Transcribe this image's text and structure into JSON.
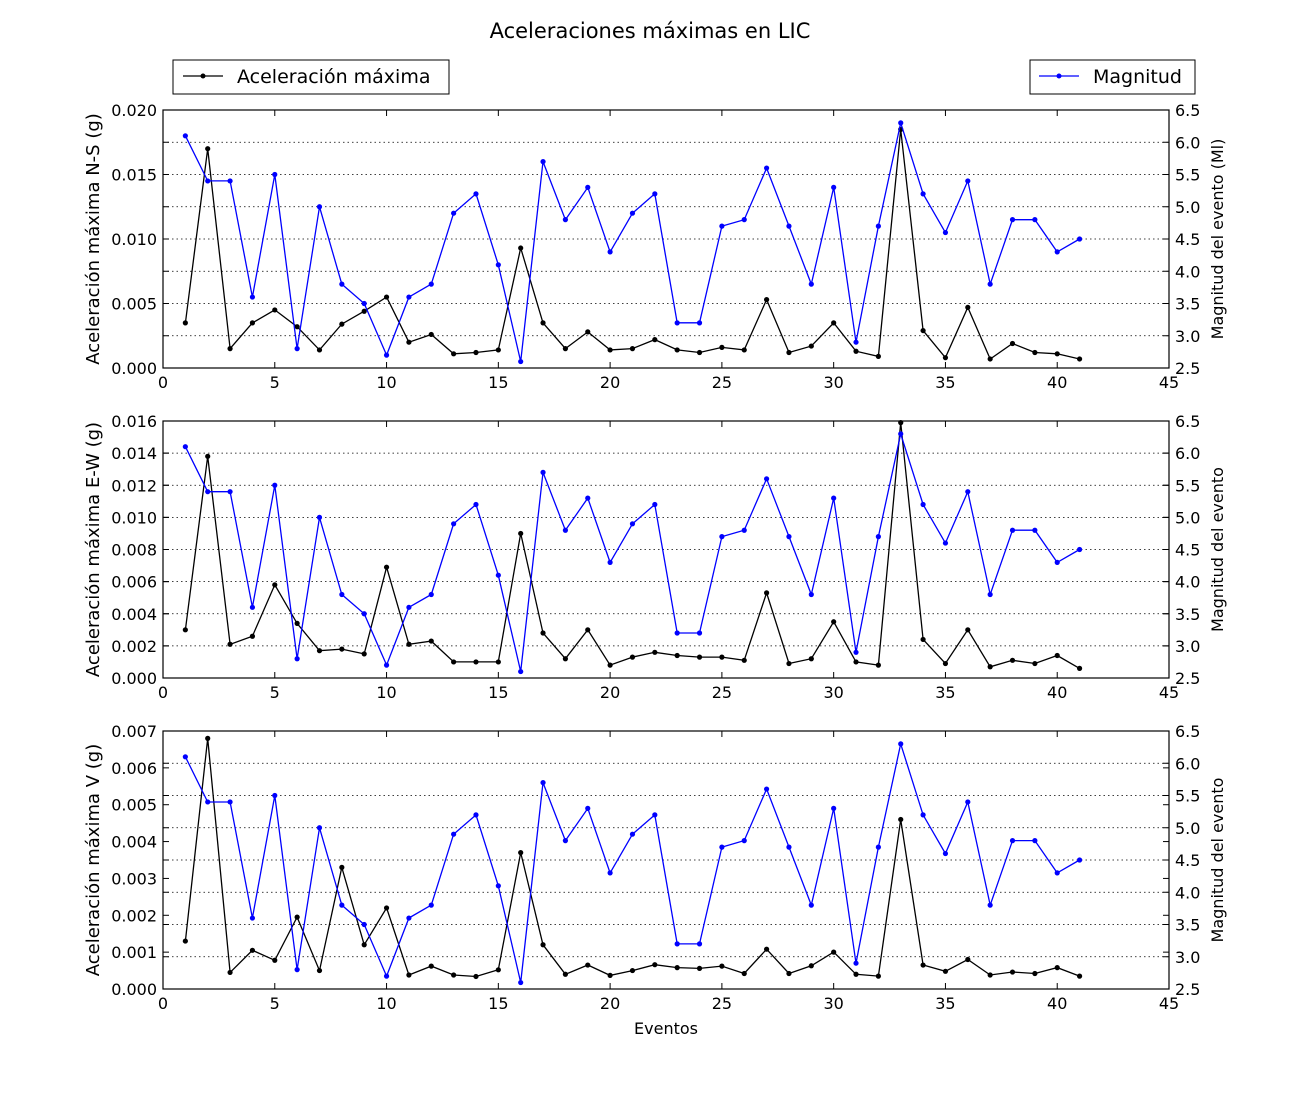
{
  "figure": {
    "title": "Aceleraciones máximas en LIC",
    "xlabel": "Eventos"
  },
  "legend": {
    "left": "Aceleración máxima",
    "right": "Magnitud"
  },
  "colors": {
    "acceleration": "#000000",
    "magnitude": "#0000ff",
    "grid": "#000000"
  },
  "chart_data": [
    {
      "type": "line",
      "xlim": [
        0,
        45
      ],
      "xticks": [
        0,
        5,
        10,
        15,
        20,
        25,
        30,
        35,
        40,
        45
      ],
      "ylabel": "Aceleración máxima N-S (g)",
      "ylim": [
        0,
        0.02
      ],
      "yticks": [
        "0.000",
        "0.005",
        "0.010",
        "0.015",
        "0.020"
      ],
      "y2label": "Magnitud del evento (Ml)",
      "y2lim": [
        2.5,
        6.5
      ],
      "y2ticks": [
        "2.5",
        "3.0",
        "3.5",
        "4.0",
        "4.5",
        "5.0",
        "5.5",
        "6.0",
        "6.5"
      ],
      "grid": "horizontal dotted",
      "legend": "top",
      "x": [
        1,
        2,
        3,
        4,
        5,
        6,
        7,
        8,
        9,
        10,
        11,
        12,
        13,
        14,
        15,
        16,
        17,
        18,
        19,
        20,
        21,
        22,
        23,
        24,
        25,
        26,
        27,
        28,
        29,
        30,
        31,
        32,
        33,
        34,
        35,
        36,
        37,
        38,
        39,
        40,
        41
      ],
      "series": [
        {
          "name": "Aceleración máxima",
          "axis": "left",
          "values": [
            0.0035,
            0.017,
            0.0015,
            0.0035,
            0.0045,
            0.0032,
            0.0014,
            0.0034,
            0.0044,
            0.0055,
            0.002,
            0.0026,
            0.0011,
            0.0012,
            0.0014,
            0.0093,
            0.0035,
            0.0015,
            0.0028,
            0.0014,
            0.0015,
            0.0022,
            0.0014,
            0.0012,
            0.0016,
            0.0014,
            0.0053,
            0.0012,
            0.0017,
            0.0035,
            0.0013,
            0.0009,
            0.0185,
            0.0029,
            0.0008,
            0.0047,
            0.0007,
            0.0019,
            0.0012,
            0.0011,
            0.0007
          ]
        },
        {
          "name": "Magnitud",
          "axis": "right",
          "values": [
            6.1,
            5.4,
            5.4,
            3.6,
            5.5,
            2.8,
            5.0,
            3.8,
            3.5,
            2.7,
            3.6,
            3.8,
            4.9,
            5.2,
            4.1,
            2.6,
            5.7,
            4.8,
            5.3,
            4.3,
            4.9,
            5.2,
            3.2,
            3.2,
            4.7,
            4.8,
            5.6,
            4.7,
            3.8,
            5.3,
            2.9,
            4.7,
            6.3,
            5.2,
            4.6,
            5.4,
            3.8,
            4.8,
            4.8,
            4.3,
            4.5
          ]
        }
      ]
    },
    {
      "type": "line",
      "xlim": [
        0,
        45
      ],
      "xticks": [
        0,
        5,
        10,
        15,
        20,
        25,
        30,
        35,
        40,
        45
      ],
      "ylabel": "Aceleración máxima E-W (g)",
      "ylim": [
        0,
        0.016
      ],
      "yticks": [
        "0.000",
        "0.002",
        "0.004",
        "0.006",
        "0.008",
        "0.010",
        "0.012",
        "0.014",
        "0.016"
      ],
      "y2label": "Magnitud del evento",
      "y2lim": [
        2.5,
        6.5
      ],
      "y2ticks": [
        "2.5",
        "3.0",
        "3.5",
        "4.0",
        "4.5",
        "5.0",
        "5.5",
        "6.0",
        "6.5"
      ],
      "grid": "horizontal dotted",
      "x": [
        1,
        2,
        3,
        4,
        5,
        6,
        7,
        8,
        9,
        10,
        11,
        12,
        13,
        14,
        15,
        16,
        17,
        18,
        19,
        20,
        21,
        22,
        23,
        24,
        25,
        26,
        27,
        28,
        29,
        30,
        31,
        32,
        33,
        34,
        35,
        36,
        37,
        38,
        39,
        40,
        41
      ],
      "series": [
        {
          "name": "Aceleración máxima",
          "axis": "left",
          "values": [
            0.003,
            0.0138,
            0.0021,
            0.0026,
            0.0058,
            0.0034,
            0.0017,
            0.0018,
            0.0015,
            0.0069,
            0.0021,
            0.0023,
            0.001,
            0.001,
            0.001,
            0.009,
            0.0028,
            0.0012,
            0.003,
            0.0008,
            0.0013,
            0.0016,
            0.0014,
            0.0013,
            0.0013,
            0.0011,
            0.0053,
            0.0009,
            0.0012,
            0.0035,
            0.001,
            0.0008,
            0.0159,
            0.0024,
            0.0009,
            0.003,
            0.0007,
            0.0011,
            0.0009,
            0.0014,
            0.0006
          ]
        },
        {
          "name": "Magnitud",
          "axis": "right",
          "values": [
            6.1,
            5.4,
            5.4,
            3.6,
            5.5,
            2.8,
            5.0,
            3.8,
            3.5,
            2.7,
            3.6,
            3.8,
            4.9,
            5.2,
            4.1,
            2.6,
            5.7,
            4.8,
            5.3,
            4.3,
            4.9,
            5.2,
            3.2,
            3.2,
            4.7,
            4.8,
            5.6,
            4.7,
            3.8,
            5.3,
            2.9,
            4.7,
            6.3,
            5.2,
            4.6,
            5.4,
            3.8,
            4.8,
            4.8,
            4.3,
            4.5
          ]
        }
      ]
    },
    {
      "type": "line",
      "xlim": [
        0,
        45
      ],
      "xticks": [
        0,
        5,
        10,
        15,
        20,
        25,
        30,
        35,
        40,
        45
      ],
      "ylabel": "Aceleración máxima V (g)",
      "ylim": [
        0,
        0.007
      ],
      "yticks": [
        "0.000",
        "0.001",
        "0.002",
        "0.003",
        "0.004",
        "0.005",
        "0.006",
        "0.007"
      ],
      "y2label": "Magnitud del evento",
      "y2lim": [
        2.5,
        6.5
      ],
      "y2ticks": [
        "2.5",
        "3.0",
        "3.5",
        "4.0",
        "4.5",
        "5.0",
        "5.5",
        "6.0",
        "6.5"
      ],
      "grid": "horizontal dotted",
      "x": [
        1,
        2,
        3,
        4,
        5,
        6,
        7,
        8,
        9,
        10,
        11,
        12,
        13,
        14,
        15,
        16,
        17,
        18,
        19,
        20,
        21,
        22,
        23,
        24,
        25,
        26,
        27,
        28,
        29,
        30,
        31,
        32,
        33,
        34,
        35,
        36,
        37,
        38,
        39,
        40,
        41
      ],
      "series": [
        {
          "name": "Aceleración máxima",
          "axis": "left",
          "values": [
            0.0013,
            0.0068,
            0.00045,
            0.00105,
            0.00078,
            0.00195,
            0.0005,
            0.0033,
            0.0012,
            0.0022,
            0.00038,
            0.00062,
            0.00038,
            0.00034,
            0.00052,
            0.0037,
            0.0012,
            0.0004,
            0.00065,
            0.00037,
            0.0005,
            0.00066,
            0.00058,
            0.00056,
            0.00062,
            0.00042,
            0.00108,
            0.00042,
            0.00063,
            0.001,
            0.0004,
            0.00035,
            0.0046,
            0.00065,
            0.00048,
            0.0008,
            0.00038,
            0.00046,
            0.00042,
            0.00058,
            0.00035
          ]
        },
        {
          "name": "Magnitud",
          "axis": "right",
          "values": [
            6.1,
            5.4,
            5.4,
            3.6,
            5.5,
            2.8,
            5.0,
            3.8,
            3.5,
            2.7,
            3.6,
            3.8,
            4.9,
            5.2,
            4.1,
            2.6,
            5.7,
            4.8,
            5.3,
            4.3,
            4.9,
            5.2,
            3.2,
            3.2,
            4.7,
            4.8,
            5.6,
            4.7,
            3.8,
            5.3,
            2.9,
            4.7,
            6.3,
            5.2,
            4.6,
            5.4,
            3.8,
            4.8,
            4.8,
            4.3,
            4.5
          ]
        }
      ]
    }
  ]
}
